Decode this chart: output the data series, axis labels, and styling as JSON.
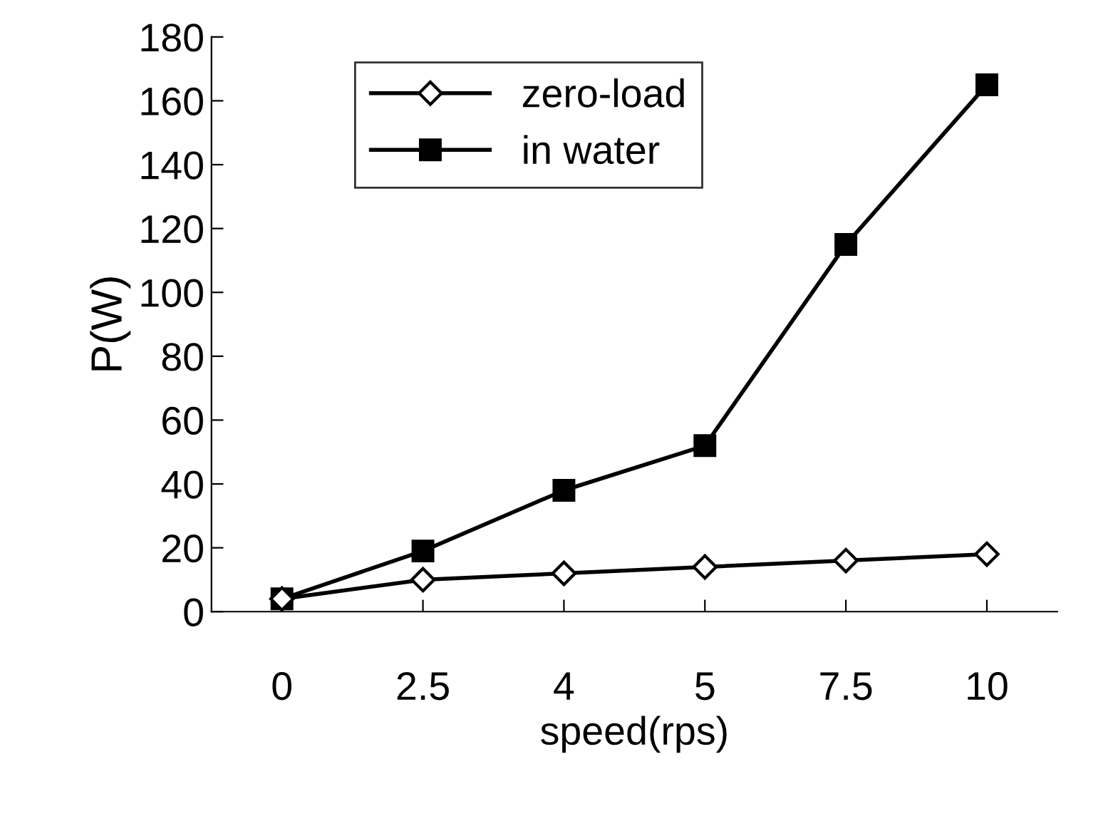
{
  "chart_data": {
    "type": "line",
    "xlabel": "speed(rps)",
    "ylabel": "P(W)",
    "categories": [
      "0",
      "2.5",
      "4",
      "5",
      "7.5",
      "10"
    ],
    "series": [
      {
        "name": "zero-load",
        "color": "#000000",
        "marker": "diamond",
        "values": [
          4,
          10,
          12,
          14,
          16,
          18
        ]
      },
      {
        "name": "in water",
        "color": "#000000",
        "marker": "square",
        "values": [
          4,
          19,
          38,
          52,
          115,
          165
        ]
      }
    ],
    "ylim": [
      0,
      180
    ],
    "yticks": [
      0,
      20,
      40,
      60,
      80,
      100,
      120,
      140,
      160,
      180
    ],
    "grid": false,
    "legend": "top",
    "line_style": "solid"
  }
}
